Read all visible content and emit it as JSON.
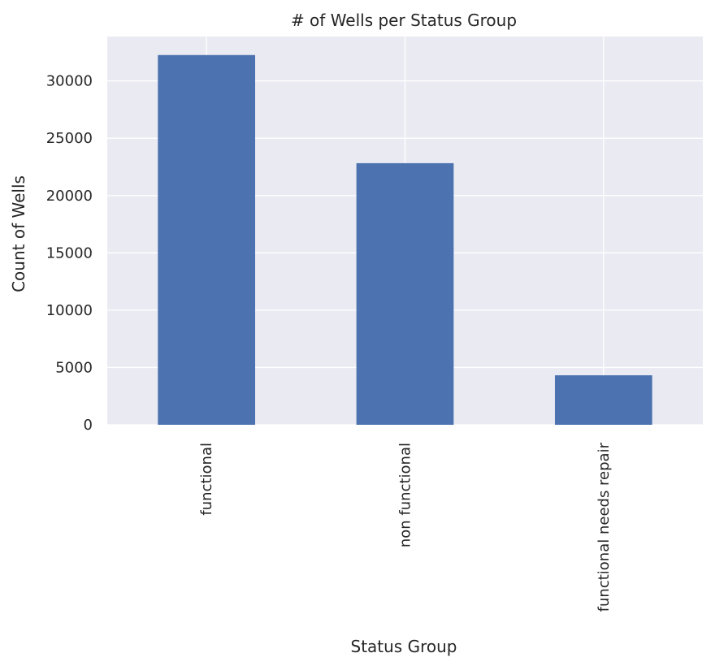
{
  "chart_data": {
    "type": "bar",
    "title": "# of Wells per Status Group",
    "xlabel": "Status Group",
    "ylabel": "Count of Wells",
    "categories": [
      "functional",
      "non functional",
      "functional needs repair"
    ],
    "values": [
      32259,
      22824,
      4317
    ],
    "ylim": [
      0,
      33872
    ],
    "yticks": [
      "0",
      "5000",
      "10000",
      "15000",
      "20000",
      "25000",
      "30000"
    ],
    "grid": true,
    "legend": "none",
    "colors": {
      "bar": "#4c72b0",
      "plot_background": "#eaeaf2",
      "grid": "#ffffff",
      "text": "#262626"
    }
  }
}
